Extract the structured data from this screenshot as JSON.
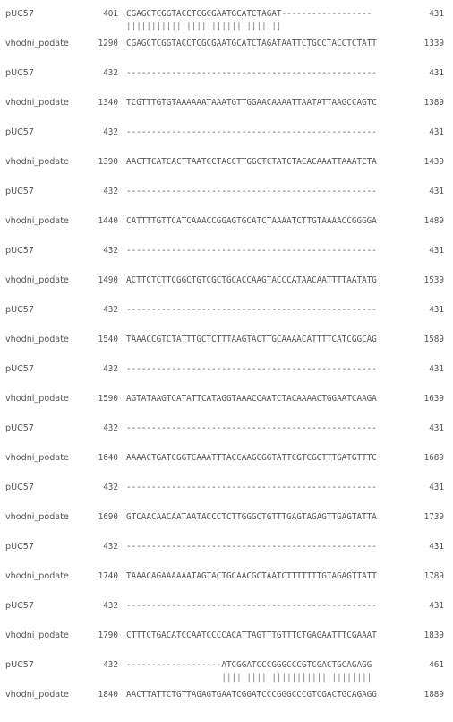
{
  "alignment": {
    "blocks": [
      {
        "q_name": "pUC57",
        "q_start": "401",
        "q_seq": "CGAGCTCGGTACCTCGCGAATGCATCTAGAT------------------",
        "q_end": "431",
        "match": "|||||||||||||||||||||||||||||||",
        "s_name": "vhodni_podate",
        "s_start": "1290",
        "s_seq": "CGAGCTCGGTACCTCGCGAATGCATCTAGATAATTCTGCCTACCTCTATT",
        "s_end": "1339"
      },
      {
        "q_name": "pUC57",
        "q_start": "432",
        "q_seq": "--------------------------------------------------",
        "q_end": "431",
        "match": "",
        "s_name": "vhodni_podate",
        "s_start": "1340",
        "s_seq": "TCGTTTGTGTAAAAAATAAATGTTGGAACAAAATTAATATTAAGCCAGTC",
        "s_end": "1389"
      },
      {
        "q_name": "pUC57",
        "q_start": "432",
        "q_seq": "--------------------------------------------------",
        "q_end": "431",
        "match": "",
        "s_name": "vhodni_podate",
        "s_start": "1390",
        "s_seq": "AACTTCATCACTTAATCCTACCTTGGCTCTATCTACACAAATTAAATCTA",
        "s_end": "1439"
      },
      {
        "q_name": "pUC57",
        "q_start": "432",
        "q_seq": "--------------------------------------------------",
        "q_end": "431",
        "match": "",
        "s_name": "vhodni_podate",
        "s_start": "1440",
        "s_seq": "CATTTTGTTCATCAAACCGGAGTGCATCTAAAATCTTGTAAAACCGGGGA",
        "s_end": "1489"
      },
      {
        "q_name": "pUC57",
        "q_start": "432",
        "q_seq": "--------------------------------------------------",
        "q_end": "431",
        "match": "",
        "s_name": "vhodni_podate",
        "s_start": "1490",
        "s_seq": "ACTTCTCTTCGGCTGTCGCTGCACCAAGTACCCATAACAATTTTAATATG",
        "s_end": "1539"
      },
      {
        "q_name": "pUC57",
        "q_start": "432",
        "q_seq": "--------------------------------------------------",
        "q_end": "431",
        "match": "",
        "s_name": "vhodni_podate",
        "s_start": "1540",
        "s_seq": "TAAACCGTCTATTTGCTCTTTAAGTACTTGCAAAACATTTTCATCGGCAG",
        "s_end": "1589"
      },
      {
        "q_name": "pUC57",
        "q_start": "432",
        "q_seq": "--------------------------------------------------",
        "q_end": "431",
        "match": "",
        "s_name": "vhodni_podate",
        "s_start": "1590",
        "s_seq": "AGTATAAGTCATATTCATAGGTAAACCAATCTACAAAACTGGAATCAAGA",
        "s_end": "1639"
      },
      {
        "q_name": "pUC57",
        "q_start": "432",
        "q_seq": "--------------------------------------------------",
        "q_end": "431",
        "match": "",
        "s_name": "vhodni_podate",
        "s_start": "1640",
        "s_seq": "AAAACTGATCGGTCAAATTTACCAAGCGGTATTCGTCGGTTTGATGTTTC",
        "s_end": "1689"
      },
      {
        "q_name": "pUC57",
        "q_start": "432",
        "q_seq": "--------------------------------------------------",
        "q_end": "431",
        "match": "",
        "s_name": "vhodni_podate",
        "s_start": "1690",
        "s_seq": "GTCAACAACAATAATACCCTCTTGGGCTGTTTGAGTAGAGTTGAGTATTA",
        "s_end": "1739"
      },
      {
        "q_name": "pUC57",
        "q_start": "432",
        "q_seq": "--------------------------------------------------",
        "q_end": "431",
        "match": "",
        "s_name": "vhodni_podate",
        "s_start": "1740",
        "s_seq": "TAAACAGAAAAAATAGTACTGCAACGCTAATCTTTTTTTGTAGAGTTATT",
        "s_end": "1789"
      },
      {
        "q_name": "pUC57",
        "q_start": "432",
        "q_seq": "--------------------------------------------------",
        "q_end": "431",
        "match": "",
        "s_name": "vhodni_podate",
        "s_start": "1790",
        "s_seq": "CTTTCTGACATCCAATCCCCACATTAGTTTGTTTCTGAGAATTTCGAAAT",
        "s_end": "1839"
      },
      {
        "q_name": "pUC57",
        "q_start": "432",
        "q_seq": "-------------------ATCGGATCCCGGGCCCGTCGACTGCAGAGG",
        "q_end": "461",
        "match": "                   ||||||||||||||||||||||||||||||",
        "s_name": "vhodni_podate",
        "s_start": "1840",
        "s_seq": "AACTTATTCTGTTAGAGTGAATCGGATCCCGGGCCCGTCGACTGCAGAGG",
        "s_end": "1889"
      }
    ]
  }
}
